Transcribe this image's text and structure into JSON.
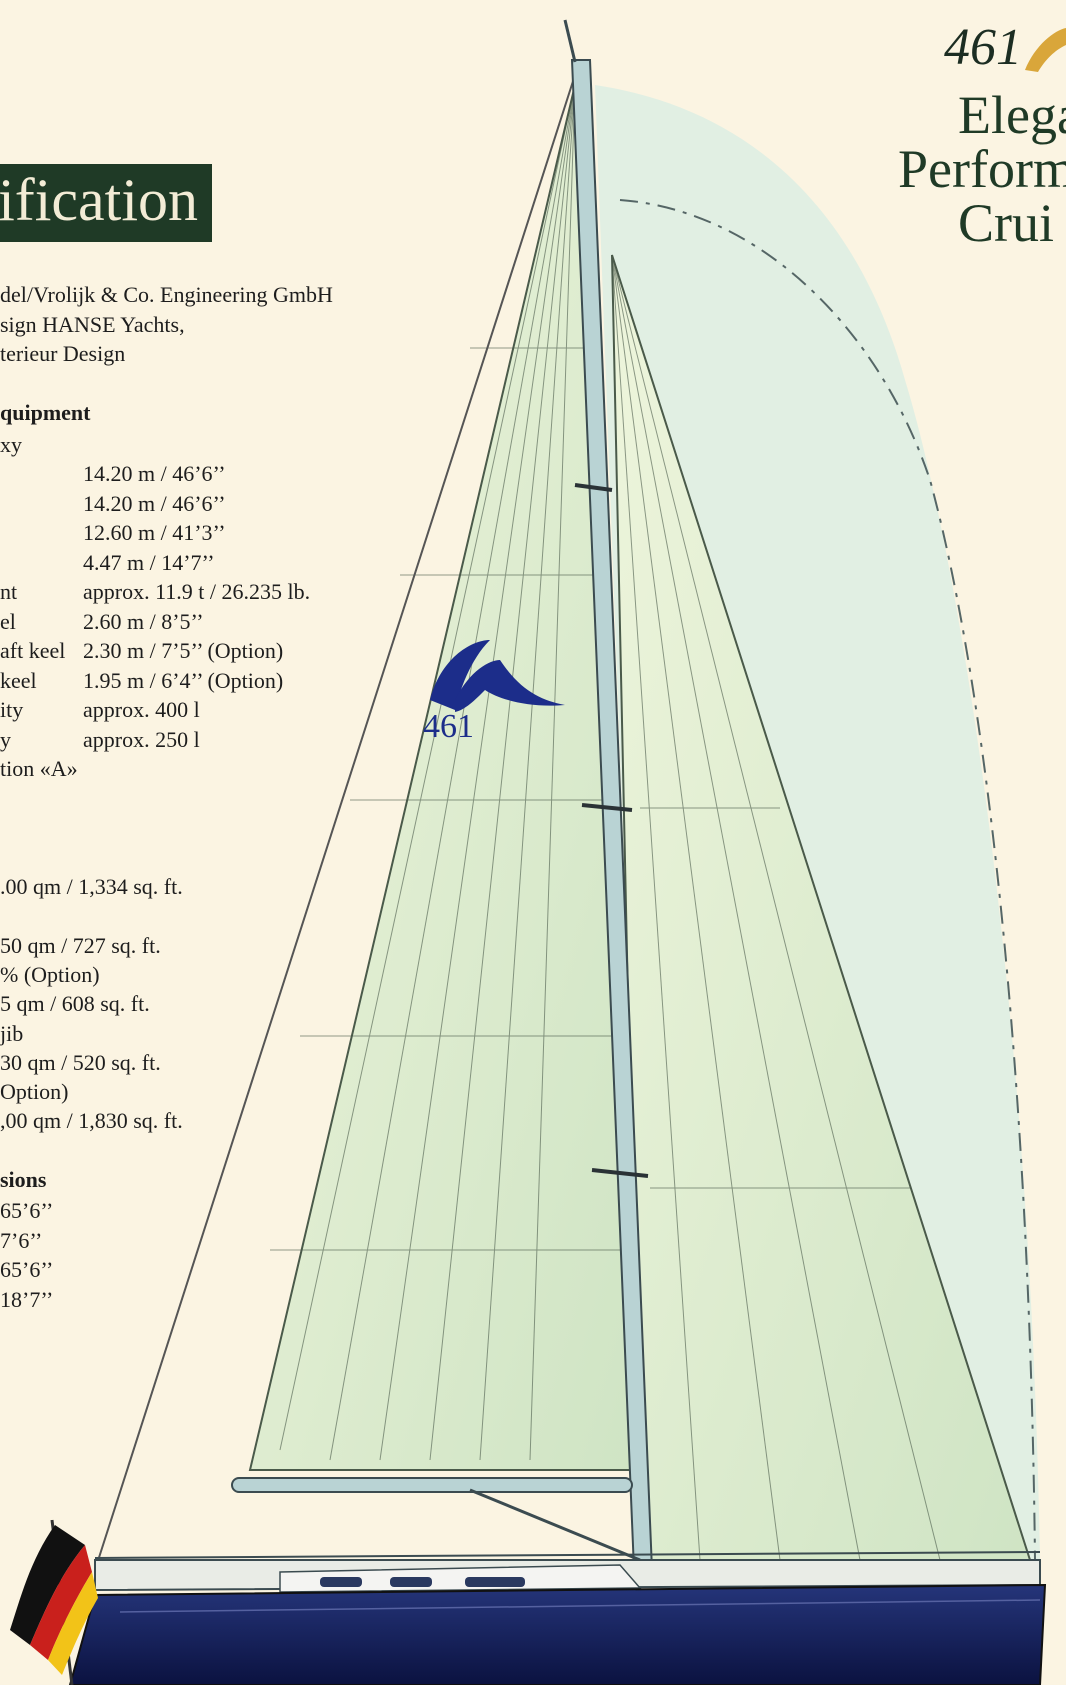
{
  "title": "ification",
  "credits": [
    "del/Vrolijk & Co. Engineering GmbH",
    "sign HANSE Yachts,",
    "terieur Design"
  ],
  "equipment_header": "quipment",
  "material": "xy",
  "specs": [
    {
      "label": "",
      "value": "14.20 m / 46’6’’"
    },
    {
      "label": "",
      "value": "14.20 m / 46’6’’"
    },
    {
      "label": "",
      "value": "12.60 m / 41’3’’"
    },
    {
      "label": "",
      "value": "4.47 m / 14’7’’"
    },
    {
      "label": "nt",
      "value": "approx. 11.9 t / 26.235 lb."
    },
    {
      "label": "el",
      "value": "2.60 m / 8’5’’"
    },
    {
      "label": "aft keel",
      "value": "2.30 m / 7’5’’ (Option)"
    },
    {
      "label": "keel",
      "value": "1.95 m / 6’4’’ (Option)"
    },
    {
      "label": "ity",
      "value": "approx. 400 l"
    },
    {
      "label": "y",
      "value": "approx. 250 l"
    }
  ],
  "category": "tion «A»",
  "sail_area_total": ".00 qm / 1,334 sq. ft.",
  "sails": [
    "50 qm / 727 sq. ft.",
    "% (Option)",
    "5 qm / 608 sq. ft.",
    " jib",
    "30 qm / 520 sq. ft.",
    "Option)",
    ",00 qm / 1,830 sq. ft."
  ],
  "dimensions_header": "sions",
  "dimensions": [
    " 65’6’’",
    "7’6’’",
    " 65’6’’",
    "18’7’’"
  ],
  "model_number": "461",
  "tagline": [
    "Elega",
    "Perform",
    "Crui"
  ],
  "sail_number": "461",
  "colors": {
    "title_bg": "#1f3a26",
    "background": "#fbf4e2",
    "hull": "#0f1b5c",
    "sail": "#dfeecf",
    "logo_blue": "#1c2d8a",
    "logo_gold": "#d9a63a"
  }
}
